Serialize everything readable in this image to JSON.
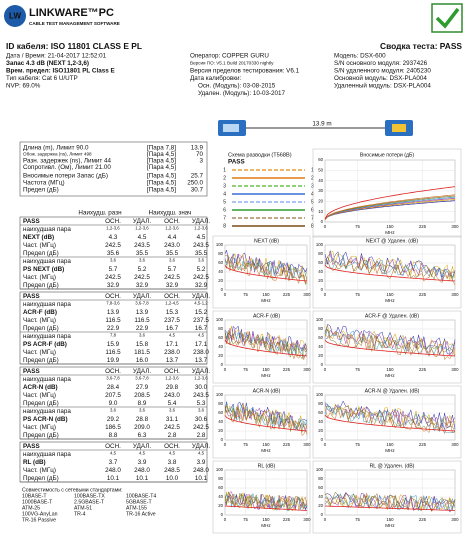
{
  "logo": {
    "mark": "LW",
    "name": "LINKWARE™PC",
    "tagline": "CABLE TEST MANAGEMENT SOFTWARE"
  },
  "header": {
    "cable_id": "ID кабеля: ISO 11801 CLASS E PL",
    "test_summary": "Сводка теста: PASS",
    "left": [
      "Дата / Время: 21-04-2017 12:52:01",
      "Запас 4.3 dB (NEXT 1,2-3,6)",
      "Врем. предел: ISO11801 PL Class E",
      "Тип кабеля: Cat 6 U/UTP",
      "NVP: 69.0%"
    ],
    "middle": [
      "Оператор: COPPER GURU",
      "Версия ПО: V5.1 Build 20170330 nightly",
      "Версия пределов тестирования: V6.1",
      "Дата калибровки:",
      "Осн. (Модуль): 03-08-2015",
      "Удален. (Модуль): 10-03-2017"
    ],
    "right": [
      "Модель: DSX-600",
      "S/N основного модуля: 2937426",
      "S/N удаленного модуля: 2405230",
      "Основной модуль: DSX-PLA004",
      "Удаленный модуль: DSX-PLA004"
    ]
  },
  "summary": [
    [
      "Длина (m), Лимит 90.0",
      "[Пара 7,8]",
      "13.9"
    ],
    [
      "Обож. задержка (ns), Лимит 498",
      "[Пара 4,5]",
      "70"
    ],
    [
      "Разн. задержек (ns), Лимит 44",
      "[Пара 4,5]",
      "3"
    ],
    [
      "Сопротивл. (Ом), Лимит 21.00",
      "[Пара 4,5]"
    ],
    [
      "Вносимые потери Запас (дБ)",
      "[Пара 4,5]",
      "25.7"
    ],
    [
      "Частота (МГц)",
      "[Пара 4,5]",
      "250.0"
    ],
    [
      "Предел (дБ)",
      "[Пара 4,5]",
      "30.7"
    ]
  ],
  "results": {
    "col_headers": [
      "Наихудш. разн",
      "Наихудш. знач"
    ],
    "sections": [
      {
        "status": "PASS",
        "columns": [
          "ОСН.",
          "УДАЛ.",
          "ОСН.",
          "УДАЛ."
        ],
        "rows": [
          [
            "наихудшая пара",
            "1,2-3,6",
            "1,2-3,6",
            "1,2-3,6",
            "1,2-3,6"
          ],
          [
            "NEXT (dB)",
            "4.3",
            "4.5",
            "4.4",
            "4.5"
          ],
          [
            "Част. (МГц)",
            "242.5",
            "243.5",
            "243.0",
            "243.5"
          ],
          [
            "Предел (дБ)",
            "35.6",
            "35.5",
            "35.5",
            "35.5"
          ],
          [
            "наихудшая пара",
            "3,6",
            "3,6",
            "3,6",
            "3,6"
          ],
          [
            "PS NEXT (dB)",
            "5.7",
            "5.2",
            "5.7",
            "5.2"
          ],
          [
            "Част. (МГц)",
            "242.5",
            "242.5",
            "242.5",
            "242.5"
          ],
          [
            "Предел (дБ)",
            "32.9",
            "32.9",
            "32.9",
            "32.9"
          ]
        ]
      },
      {
        "status": "PASS",
        "columns": [
          "ОСН.",
          "УДАЛ.",
          "ОСН.",
          "УДАЛ."
        ],
        "rows": [
          [
            "наихудшая пара",
            "7,8-3,6",
            "3,6-7,8",
            "1,2-4,5",
            "4,5-1,2"
          ],
          [
            "ACR-F (dB)",
            "13.9",
            "13.9",
            "15.3",
            "15.2"
          ],
          [
            "Част. (МГц)",
            "116.5",
            "116.5",
            "237.5",
            "237.5"
          ],
          [
            "Предел (дБ)",
            "22.9",
            "22.9",
            "16.7",
            "16.7"
          ],
          [
            "наихудшая пара",
            "7,8",
            "3,6",
            "4,5",
            "4,5"
          ],
          [
            "PS ACR-F (dB)",
            "15.9",
            "15.8",
            "17.1",
            "17.1"
          ],
          [
            "Част. (МГц)",
            "116.5",
            "181.5",
            "238.0",
            "238.0"
          ],
          [
            "Предел (дБ)",
            "19.9",
            "16.0",
            "13.7",
            "13.7"
          ]
        ]
      },
      {
        "status": "PASS",
        "columns": [
          "ОСН.",
          "УДАЛ.",
          "ОСН.",
          "УДАЛ."
        ],
        "rows": [
          [
            "наихудшая пара",
            "3,6-7,8",
            "3,6-7,8",
            "1,2-3,6",
            "1,2-3,6"
          ],
          [
            "ACR-N (dB)",
            "28.4",
            "27.9",
            "29.8",
            "30.0"
          ],
          [
            "Част. (МГц)",
            "207.5",
            "208.5",
            "243.0",
            "243.5"
          ],
          [
            "Предел (дБ)",
            "9.0",
            "8.9",
            "5.4",
            "5.3"
          ],
          [
            "наихудшая пара",
            "3,6",
            "3,6",
            "3,6",
            "3,6"
          ],
          [
            "PS ACR-N (dB)",
            "29.2",
            "28.8",
            "31.1",
            "30.6"
          ],
          [
            "Част. (МГц)",
            "186.5",
            "209.0",
            "242.5",
            "242.5"
          ],
          [
            "Предел (дБ)",
            "8.8",
            "6.3",
            "2.8",
            "2.8"
          ]
        ]
      },
      {
        "status": "PASS",
        "columns": [
          "ОСН.",
          "УДАЛ.",
          "ОСН.",
          "УДАЛ."
        ],
        "rows": [
          [
            "наихудшая пара",
            "4,5",
            "4,5",
            "4,5",
            "4,5"
          ],
          [
            "RL (dB)",
            "3.7",
            "3.9",
            "3.8",
            "3.9"
          ],
          [
            "Част. (МГц)",
            "248.0",
            "248.0",
            "248.5",
            "248.0"
          ],
          [
            "Предел (дБ)",
            "10.1",
            "10.1",
            "10.0",
            "10.1"
          ]
        ]
      }
    ]
  },
  "standards_title": "Совместимость с сетевыми стандартами:",
  "standards": [
    "10BASE-T",
    "100BASE-TX",
    "100BASE-T4",
    "1000BASE-T",
    "2.5GBASE-T",
    "5GBASE-T",
    "ATM-25",
    "ATM-51",
    "ATM-155",
    "100VG-AnyLan",
    "TR-4",
    "TR-16 Active",
    "TR-16 Passive"
  ],
  "wiremap": {
    "length": "13.9 m",
    "title": "Схема разводки (T568B)",
    "status": "PASS",
    "pins": [
      "1",
      "2",
      "3",
      "4",
      "5",
      "6",
      "7",
      "8"
    ]
  },
  "insertion_loss": {
    "title": "Вносимые потери (дБ)",
    "ylim": [
      0,
      60
    ],
    "yticks": [
      0,
      10,
      20,
      30,
      40,
      50,
      60
    ]
  },
  "graphs": {
    "titles": [
      "NEXT (dB)",
      "NEXT @ Удален. (dB)",
      "ACR-F (dB)",
      "ACR-F @ Удален. (dB)",
      "ACR-N (dB)",
      "ACR-N @ Удален. (dB)",
      "RL (dB)",
      "RL @ Удален. (dB)"
    ],
    "ylim": [
      0,
      100
    ],
    "yticks": [
      0,
      20,
      40,
      60,
      80,
      100
    ],
    "xlim": [
      0,
      300
    ],
    "xticks": [
      0,
      75,
      150,
      225,
      300
    ],
    "xlabel": "MHz"
  }
}
